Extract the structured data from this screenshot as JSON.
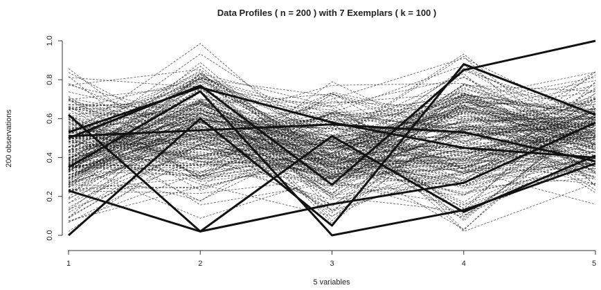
{
  "chart_data": {
    "type": "line",
    "title": "Data Profiles ( n = 200 ) with 7 Exemplars ( k = 100 )",
    "xlabel": "5 variables",
    "ylabel": "200 observations",
    "x": [
      1,
      2,
      3,
      4,
      5
    ],
    "x_tick_labels": [
      "1",
      "2",
      "3",
      "4",
      "5"
    ],
    "y_tick_labels": [
      "0.0",
      "0.2",
      "0.4",
      "0.6",
      "0.8",
      "1.0"
    ],
    "y_ticks": [
      0.0,
      0.2,
      0.4,
      0.6,
      0.8,
      1.0
    ],
    "xlim": [
      1,
      5
    ],
    "ylim": [
      0,
      1
    ],
    "grid": false,
    "background_profiles_count": 200,
    "background_style": "dashed",
    "exemplars": [
      {
        "values": [
          0.0,
          0.6,
          0.05,
          0.88,
          0.62
        ]
      },
      {
        "values": [
          0.62,
          0.02,
          0.51,
          0.12,
          0.41
        ]
      },
      {
        "values": [
          0.5,
          0.77,
          0.26,
          0.85,
          1.0
        ]
      },
      {
        "values": [
          0.53,
          0.76,
          0.58,
          0.45,
          0.4
        ]
      },
      {
        "values": [
          0.51,
          0.54,
          0.57,
          0.53,
          0.38
        ]
      },
      {
        "values": [
          0.35,
          0.74,
          0.0,
          0.13,
          0.37
        ]
      },
      {
        "values": [
          0.23,
          0.02,
          0.16,
          0.27,
          0.58
        ]
      }
    ],
    "colors": {
      "profiles": "#1a1a1a",
      "exemplars": "#111111"
    }
  }
}
